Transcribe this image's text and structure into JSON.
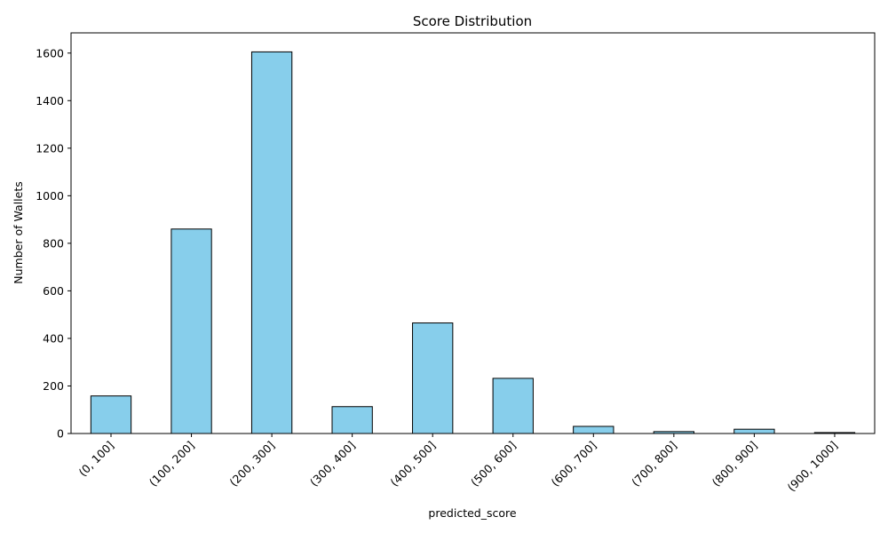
{
  "chart_data": {
    "type": "bar",
    "title": "Score Distribution",
    "xlabel": "predicted_score",
    "ylabel": "Number of Wallets",
    "categories": [
      "(0, 100]",
      "(100, 200]",
      "(200, 300]",
      "(300, 400]",
      "(400, 500]",
      "(500, 600]",
      "(600, 700]",
      "(700, 800]",
      "(800, 900]",
      "(900, 1000]"
    ],
    "values": [
      158,
      860,
      1605,
      113,
      465,
      232,
      30,
      8,
      18,
      4
    ],
    "ylim": [
      0,
      1685
    ],
    "yticks": [
      0,
      200,
      400,
      600,
      800,
      1000,
      1200,
      1400,
      1600
    ],
    "bar_color": "#87CEEB",
    "bar_edge_color": "#000000",
    "grid": false,
    "legend": false
  }
}
